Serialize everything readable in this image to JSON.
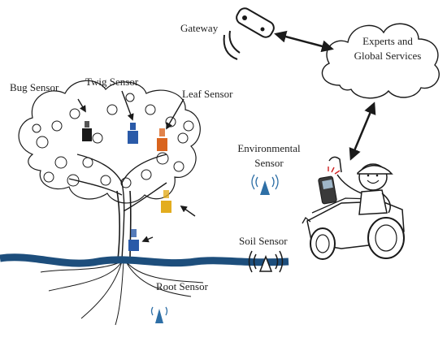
{
  "labels": {
    "gateway": "Gateway",
    "experts_line1": "Experts and",
    "experts_line2": "Global Services",
    "bug_sensor": "Bug Sensor",
    "twig_sensor": "Twig Sensor",
    "leaf_sensor": "Leaf Sensor",
    "environmental_line1": "Environmental",
    "environmental_line2": "Sensor",
    "soil_sensor": "Soil Sensor",
    "root_sensor": "Root Sensor"
  },
  "colors": {
    "ground": "#1d4e7c",
    "sensor_blue": "#2a5aa8",
    "sensor_black": "#1a1a1a",
    "sensor_orange": "#d9641e",
    "sensor_yellow": "#e3ad1e",
    "env_antenna": "#2e6fa6",
    "line": "#1a1a1a"
  },
  "icons": [
    "gateway-device-icon",
    "cloud-icon",
    "tree-icon",
    "tractor-icon",
    "farmer-icon",
    "phone-icon",
    "signal-icon"
  ]
}
